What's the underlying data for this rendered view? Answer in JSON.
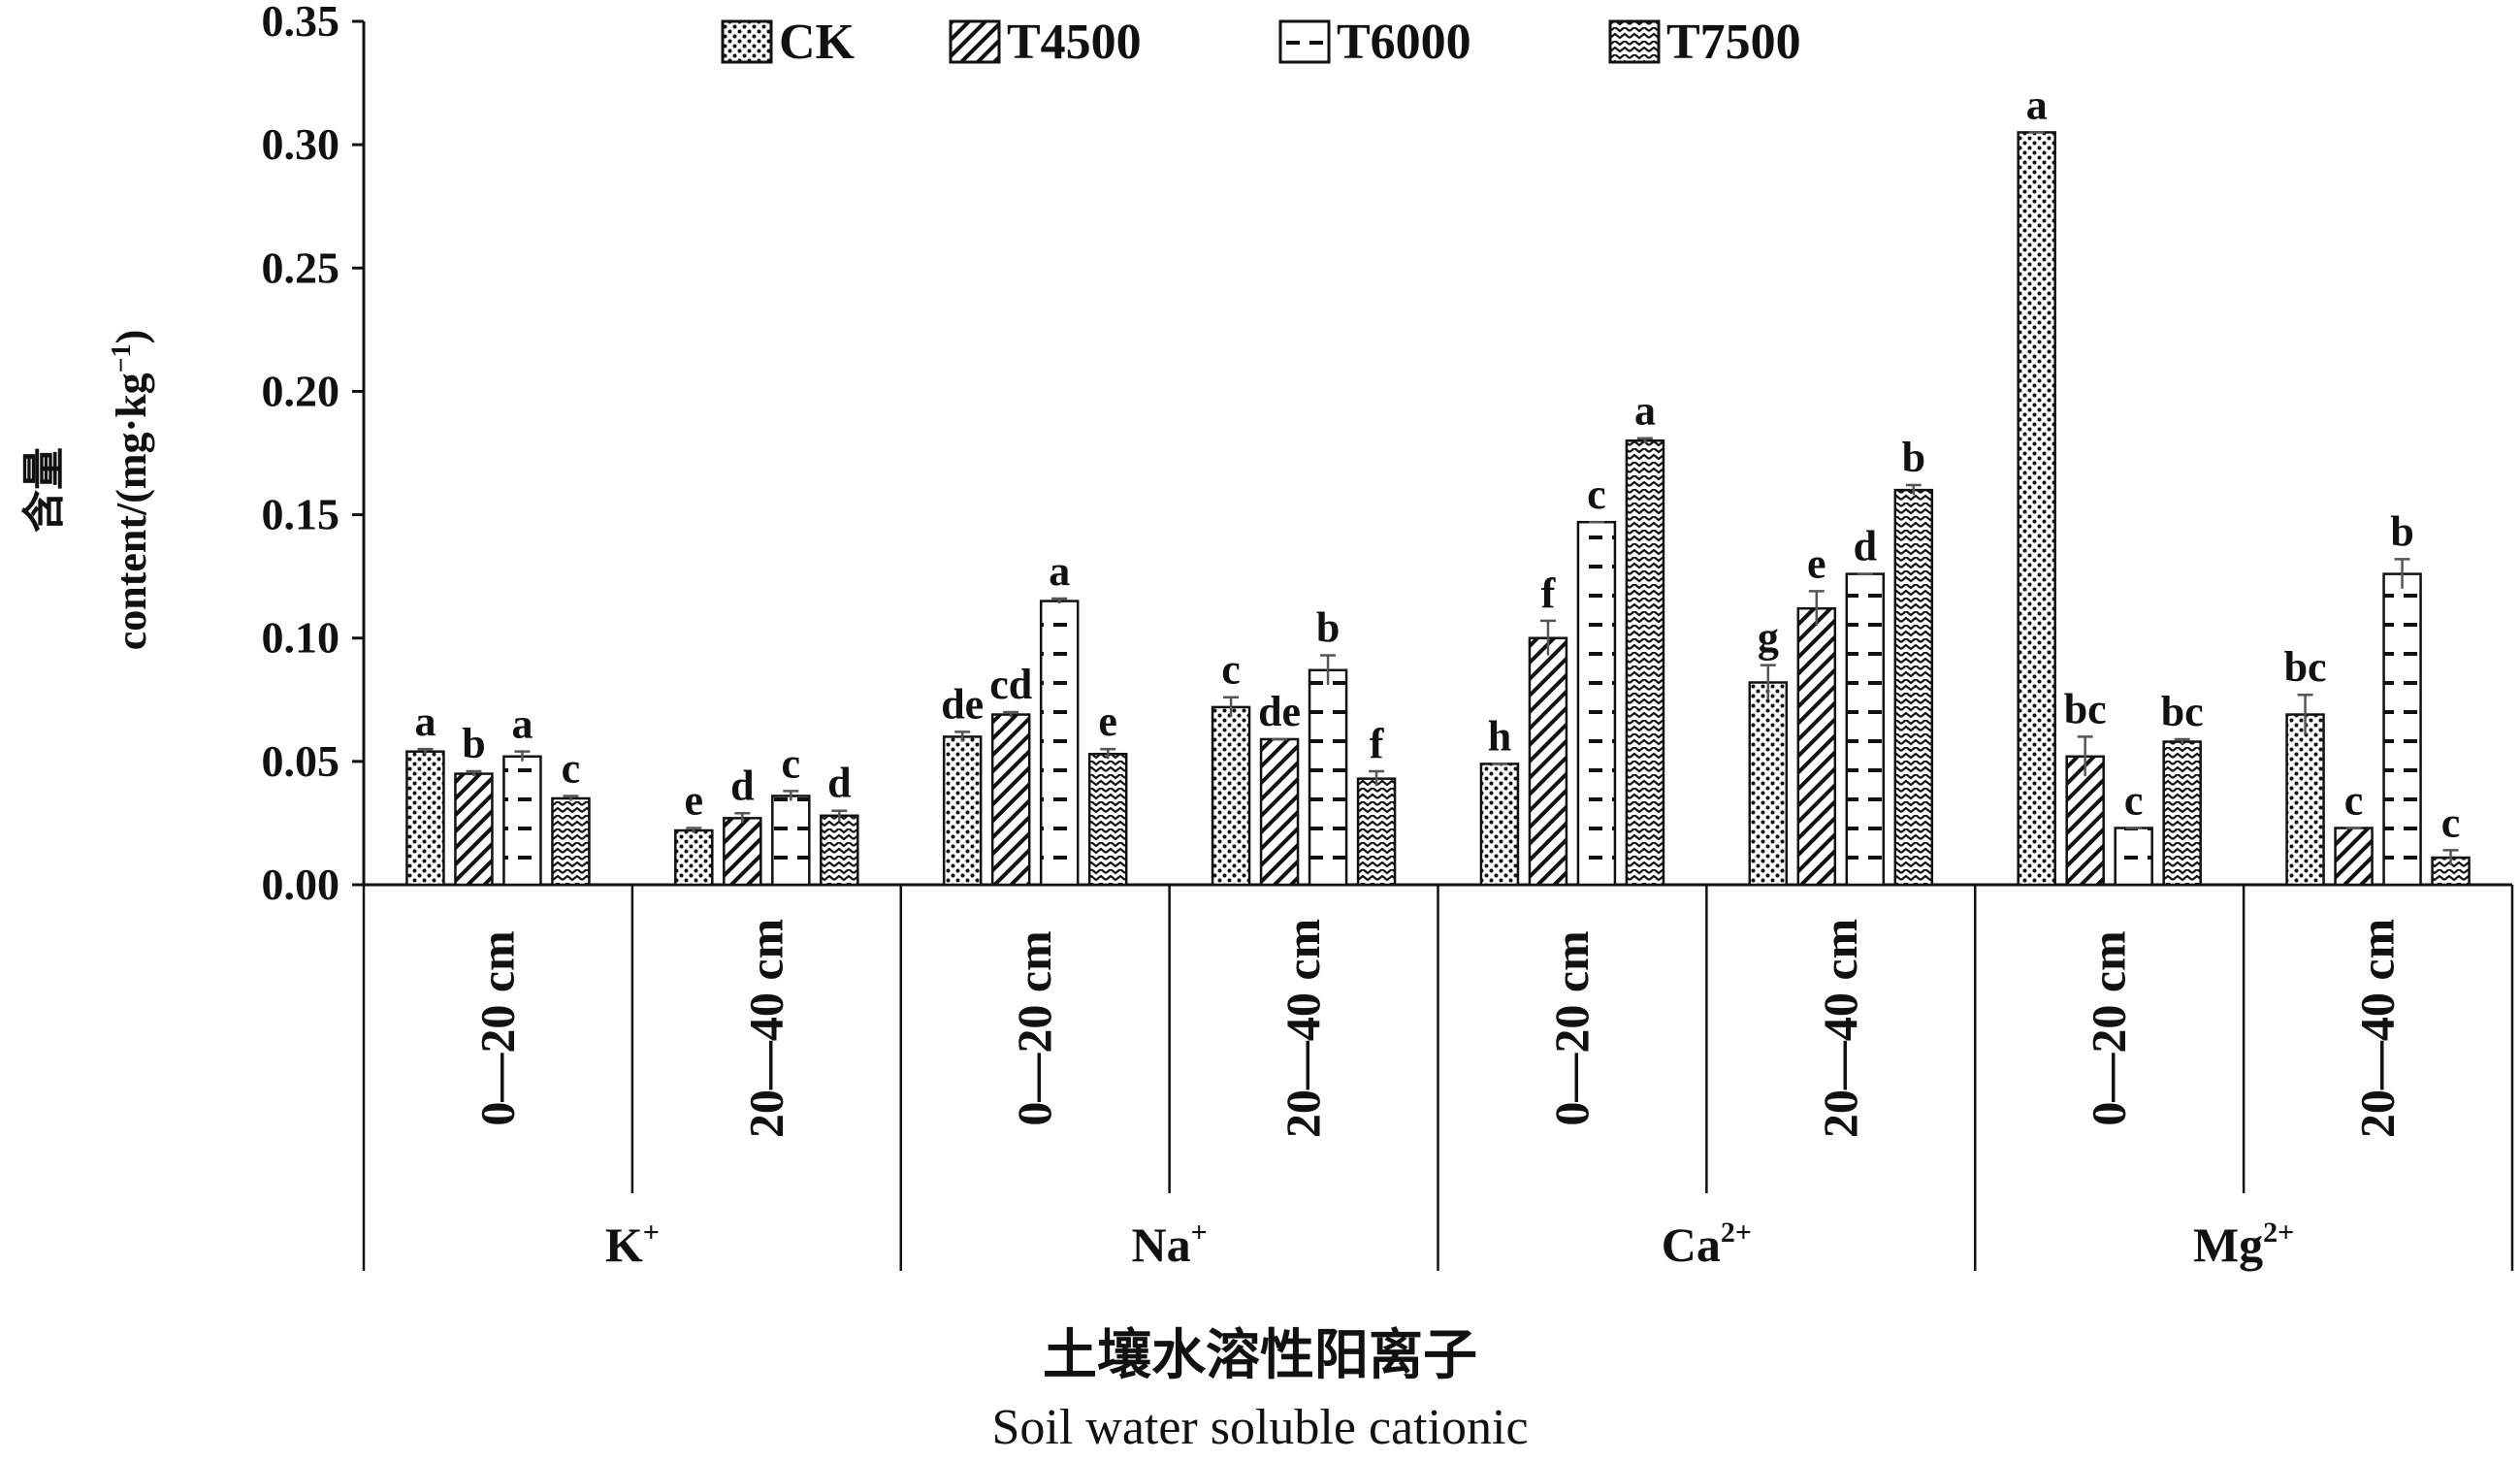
{
  "chart_data": {
    "type": "bar",
    "ylabel_cn": "含量",
    "ylabel_en": "content/(mg·kg",
    "ylabel_sup": "−1",
    "ylabel_close": ")",
    "xlabel_cn": "土壤水溶性阳离子",
    "xlabel_en": "Soil water soluble cationic",
    "ylim": [
      0,
      0.35
    ],
    "yticks": [
      "0.00",
      "0.05",
      "0.10",
      "0.15",
      "0.20",
      "0.25",
      "0.30",
      "0.35"
    ],
    "grid": false,
    "legend_position": "top",
    "depth_labels": [
      "0—20 cm",
      "20—40 cm"
    ],
    "ions": [
      {
        "base": "K",
        "sup": "+"
      },
      {
        "base": "Na",
        "sup": "+"
      },
      {
        "base": "Ca",
        "sup": "2+"
      },
      {
        "base": "Mg",
        "sup": "2+"
      }
    ],
    "series": [
      {
        "name": "CK",
        "pattern": "dots",
        "values": [
          0.054,
          0.022,
          0.06,
          0.072,
          0.049,
          0.082,
          0.305,
          0.069
        ],
        "errors": [
          0.001,
          0.001,
          0.002,
          0.004,
          0.0,
          0.007,
          0.0,
          0.008
        ],
        "letters": [
          "a",
          "e",
          "de",
          "c",
          "h",
          "g",
          "a",
          "bc"
        ]
      },
      {
        "name": "T4500",
        "pattern": "diagonal",
        "values": [
          0.045,
          0.027,
          0.069,
          0.059,
          0.1,
          0.112,
          0.052,
          0.023
        ],
        "errors": [
          0.001,
          0.002,
          0.001,
          0.0,
          0.007,
          0.007,
          0.008,
          0.0
        ],
        "letters": [
          "b",
          "d",
          "cd",
          "de",
          "f",
          "e",
          "bc",
          "c"
        ]
      },
      {
        "name": "T6000",
        "pattern": "dashes",
        "values": [
          0.052,
          0.036,
          0.115,
          0.087,
          0.147,
          0.126,
          0.023,
          0.126
        ],
        "errors": [
          0.002,
          0.002,
          0.001,
          0.006,
          0.0,
          0.0,
          0.0,
          0.006
        ],
        "letters": [
          "a",
          "c",
          "a",
          "b",
          "c",
          "d",
          "c",
          "b"
        ]
      },
      {
        "name": "T7500",
        "pattern": "waves",
        "values": [
          0.035,
          0.028,
          0.053,
          0.043,
          0.18,
          0.16,
          0.058,
          0.011
        ],
        "errors": [
          0.001,
          0.002,
          0.002,
          0.003,
          0.001,
          0.002,
          0.001,
          0.003
        ],
        "letters": [
          "c",
          "d",
          "e",
          "f",
          "a",
          "b",
          "bc",
          "c"
        ]
      }
    ]
  }
}
